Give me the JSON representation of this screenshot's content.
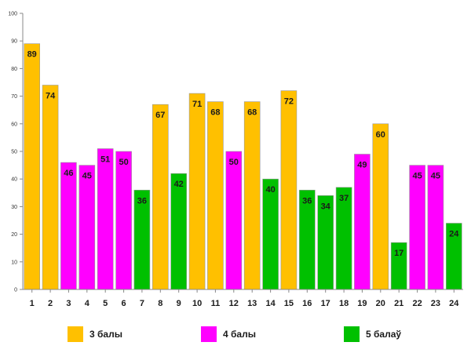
{
  "chart_data": {
    "type": "bar",
    "title": "",
    "xlabel": "",
    "ylabel": "",
    "ylim": [
      0,
      100
    ],
    "yticks": [
      0,
      10,
      20,
      30,
      40,
      50,
      60,
      70,
      80,
      90,
      100
    ],
    "grid": false,
    "categories": [
      "1",
      "2",
      "3",
      "4",
      "5",
      "6",
      "7",
      "8",
      "9",
      "10",
      "11",
      "12",
      "13",
      "14",
      "15",
      "16",
      "17",
      "18",
      "19",
      "20",
      "21",
      "22",
      "23",
      "24"
    ],
    "values": [
      89,
      74,
      46,
      45,
      51,
      50,
      36,
      67,
      42,
      71,
      68,
      50,
      68,
      40,
      72,
      36,
      34,
      37,
      49,
      60,
      17,
      45,
      45,
      24
    ],
    "value_labels": [
      "89",
      "74",
      "46",
      "45",
      "51",
      "50",
      "36",
      "67",
      "42",
      "71",
      "68",
      "50",
      "68",
      "40",
      "72",
      "36",
      "34",
      "37",
      "49",
      "60",
      "17",
      "45",
      "45",
      "24"
    ],
    "groups": [
      "3 балы",
      "3 балы",
      "4 балы",
      "4 балы",
      "4 балы",
      "4 балы",
      "5 балаў",
      "3 балы",
      "5 балаў",
      "3 балы",
      "3 балы",
      "4 балы",
      "3 балы",
      "5 балаў",
      "3 балы",
      "5 балаў",
      "5 балаў",
      "5 балаў",
      "4 балы",
      "3 балы",
      "5 балаў",
      "4 балы",
      "4 балы",
      "5 балаў"
    ],
    "legend": [
      {
        "label": "3 балы",
        "color": "#FFC000"
      },
      {
        "label": "4 балы",
        "color": "#FF00FF"
      },
      {
        "label": "5 балаў",
        "color": "#00C000"
      }
    ],
    "legend_position": "bottom"
  }
}
